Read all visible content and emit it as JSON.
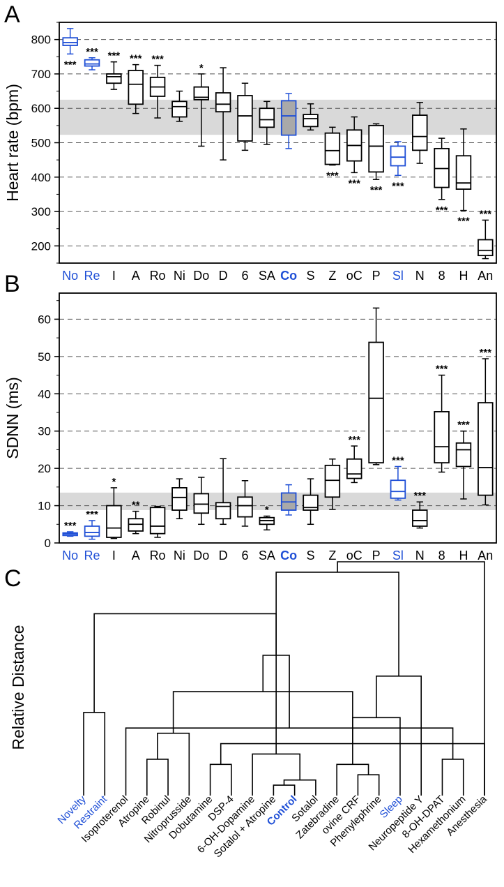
{
  "chart_data": [
    {
      "panel": "A",
      "type": "box",
      "ylabel": "Heart rate (bpm)",
      "ylim": [
        150,
        850
      ],
      "yticks": [
        200,
        300,
        400,
        500,
        600,
        700,
        800
      ],
      "grid": "dashed-horizontal",
      "band": [
        523,
        625
      ],
      "categories": [
        {
          "label": "No",
          "color": "#1f4fd6",
          "bold": false,
          "fill": "none",
          "color_box": "#1f4fd6",
          "whisker": [
            758,
            832
          ],
          "q1": 783,
          "median": 791,
          "q3": 805,
          "sig": "***",
          "sig_pos": "below"
        },
        {
          "label": "Re",
          "color": "#1f4fd6",
          "bold": false,
          "fill": "none",
          "color_box": "#1f4fd6",
          "whisker": [
            712,
            747
          ],
          "q1": 723,
          "median": 729,
          "q3": 741,
          "sig": "***",
          "sig_pos": "above"
        },
        {
          "label": "I",
          "color": "#000000",
          "bold": false,
          "fill": "none",
          "color_box": "#000000",
          "whisker": [
            655,
            735
          ],
          "q1": 673,
          "median": 692,
          "q3": 700,
          "sig": "***",
          "sig_pos": "above"
        },
        {
          "label": "A",
          "color": "#000000",
          "bold": false,
          "fill": "none",
          "color_box": "#000000",
          "whisker": [
            585,
            727
          ],
          "q1": 612,
          "median": 670,
          "q3": 710,
          "sig": "***",
          "sig_pos": "above"
        },
        {
          "label": "Ro",
          "color": "#000000",
          "bold": false,
          "fill": "none",
          "color_box": "#000000",
          "whisker": [
            572,
            725
          ],
          "q1": 635,
          "median": 662,
          "q3": 690,
          "sig": "***",
          "sig_pos": "above"
        },
        {
          "label": "Ni",
          "color": "#000000",
          "bold": false,
          "fill": "none",
          "color_box": "#000000",
          "whisker": [
            562,
            650
          ],
          "q1": 575,
          "median": 605,
          "q3": 620,
          "sig": "",
          "sig_pos": "above"
        },
        {
          "label": "Do",
          "color": "#000000",
          "bold": false,
          "fill": "none",
          "color_box": "#000000",
          "whisker": [
            490,
            700
          ],
          "q1": 625,
          "median": 632,
          "q3": 662,
          "sig": "*",
          "sig_pos": "above"
        },
        {
          "label": "D",
          "color": "#000000",
          "bold": false,
          "fill": "none",
          "color_box": "#000000",
          "whisker": [
            450,
            718
          ],
          "q1": 590,
          "median": 612,
          "q3": 645,
          "sig": "",
          "sig_pos": "above"
        },
        {
          "label": "6",
          "color": "#000000",
          "bold": false,
          "fill": "none",
          "color_box": "#000000",
          "whisker": [
            478,
            673
          ],
          "q1": 505,
          "median": 578,
          "q3": 637,
          "sig": "",
          "sig_pos": "above"
        },
        {
          "label": "SA",
          "color": "#000000",
          "bold": false,
          "fill": "none",
          "color_box": "#000000",
          "whisker": [
            495,
            620
          ],
          "q1": 545,
          "median": 567,
          "q3": 600,
          "sig": "",
          "sig_pos": "above"
        },
        {
          "label": "Co",
          "color": "#1f4fd6",
          "bold": true,
          "fill": "#a9a9a9",
          "color_box": "#1f4fd6",
          "whisker": [
            483,
            643
          ],
          "q1": 522,
          "median": 578,
          "q3": 622,
          "sig": "",
          "sig_pos": "above"
        },
        {
          "label": "S",
          "color": "#000000",
          "bold": false,
          "fill": "none",
          "color_box": "#000000",
          "whisker": [
            537,
            613
          ],
          "q1": 547,
          "median": 570,
          "q3": 582,
          "sig": "",
          "sig_pos": "above"
        },
        {
          "label": "Z",
          "color": "#000000",
          "bold": false,
          "fill": "none",
          "color_box": "#000000",
          "whisker": [
            435,
            545
          ],
          "q1": 437,
          "median": 477,
          "q3": 528,
          "sig": "***",
          "sig_pos": "below"
        },
        {
          "label": "oC",
          "color": "#000000",
          "bold": false,
          "fill": "none",
          "color_box": "#000000",
          "whisker": [
            413,
            575
          ],
          "q1": 447,
          "median": 492,
          "q3": 537,
          "sig": "***",
          "sig_pos": "below"
        },
        {
          "label": "P",
          "color": "#000000",
          "bold": false,
          "fill": "none",
          "color_box": "#000000",
          "whisker": [
            393,
            555
          ],
          "q1": 415,
          "median": 490,
          "q3": 550,
          "sig": "***",
          "sig_pos": "below"
        },
        {
          "label": "Sl",
          "color": "#1f4fd6",
          "bold": false,
          "fill": "none",
          "color_box": "#1f4fd6",
          "whisker": [
            405,
            503
          ],
          "q1": 433,
          "median": 458,
          "q3": 490,
          "sig": "***",
          "sig_pos": "below"
        },
        {
          "label": "N",
          "color": "#000000",
          "bold": false,
          "fill": "none",
          "color_box": "#000000",
          "whisker": [
            440,
            617
          ],
          "q1": 478,
          "median": 518,
          "q3": 580,
          "sig": "",
          "sig_pos": "above"
        },
        {
          "label": "8",
          "color": "#000000",
          "bold": false,
          "fill": "none",
          "color_box": "#000000",
          "whisker": [
            335,
            513
          ],
          "q1": 370,
          "median": 425,
          "q3": 483,
          "sig": "***",
          "sig_pos": "below"
        },
        {
          "label": "H",
          "color": "#000000",
          "bold": false,
          "fill": "none",
          "color_box": "#000000",
          "whisker": [
            303,
            540
          ],
          "q1": 365,
          "median": 383,
          "q3": 462,
          "sig": "***",
          "sig_pos": "below"
        },
        {
          "label": "An",
          "color": "#000000",
          "bold": false,
          "fill": "none",
          "color_box": "#000000",
          "whisker": [
            163,
            275
          ],
          "q1": 172,
          "median": 187,
          "q3": 218,
          "sig": "***",
          "sig_pos": "above"
        }
      ]
    },
    {
      "panel": "B",
      "type": "box",
      "ylabel": "SDNN (ms)",
      "ylim": [
        0,
        67
      ],
      "yticks": [
        0,
        10,
        20,
        30,
        40,
        50,
        60
      ],
      "grid": "dashed-horizontal",
      "band": [
        8.8,
        13.5
      ],
      "categories": [
        {
          "label": "No",
          "color": "#1f4fd6",
          "bold": false,
          "fill": "none",
          "color_box": "#1f4fd6",
          "whisker": [
            1.8,
            3.0
          ],
          "q1": 2.0,
          "median": 2.4,
          "q3": 2.7,
          "sig": "***"
        },
        {
          "label": "Re",
          "color": "#1f4fd6",
          "bold": false,
          "fill": "none",
          "color_box": "#1f4fd6",
          "whisker": [
            1.0,
            6.0
          ],
          "q1": 1.8,
          "median": 2.8,
          "q3": 4.5,
          "sig": "***"
        },
        {
          "label": "I",
          "color": "#000000",
          "bold": false,
          "fill": "none",
          "color_box": "#000000",
          "whisker": [
            1.2,
            14.8
          ],
          "q1": 1.5,
          "median": 4.0,
          "q3": 10.0,
          "sig": "*"
        },
        {
          "label": "A",
          "color": "#000000",
          "bold": false,
          "fill": "none",
          "color_box": "#000000",
          "whisker": [
            2.5,
            8.5
          ],
          "q1": 3.2,
          "median": 5.0,
          "q3": 6.5,
          "sig": "**"
        },
        {
          "label": "Ro",
          "color": "#000000",
          "bold": false,
          "fill": "none",
          "color_box": "#000000",
          "whisker": [
            1.5,
            9.8
          ],
          "q1": 2.5,
          "median": 4.5,
          "q3": 9.5,
          "sig": ""
        },
        {
          "label": "Ni",
          "color": "#000000",
          "bold": false,
          "fill": "none",
          "color_box": "#000000",
          "whisker": [
            6.5,
            17.2
          ],
          "q1": 8.8,
          "median": 12.2,
          "q3": 14.8,
          "sig": ""
        },
        {
          "label": "Do",
          "color": "#000000",
          "bold": false,
          "fill": "none",
          "color_box": "#000000",
          "whisker": [
            5.0,
            17.6
          ],
          "q1": 8.0,
          "median": 10.4,
          "q3": 13.2,
          "sig": ""
        },
        {
          "label": "D",
          "color": "#000000",
          "bold": false,
          "fill": "none",
          "color_box": "#000000",
          "whisker": [
            5.0,
            22.6
          ],
          "q1": 6.5,
          "median": 9.8,
          "q3": 10.8,
          "sig": ""
        },
        {
          "label": "6",
          "color": "#000000",
          "bold": false,
          "fill": "none",
          "color_box": "#000000",
          "whisker": [
            4.5,
            16.7
          ],
          "q1": 7.0,
          "median": 10.0,
          "q3": 12.3,
          "sig": ""
        },
        {
          "label": "SA",
          "color": "#000000",
          "bold": false,
          "fill": "none",
          "color_box": "#000000",
          "whisker": [
            3.5,
            7.2
          ],
          "q1": 5.0,
          "median": 6.0,
          "q3": 6.8,
          "sig": "*"
        },
        {
          "label": "Co",
          "color": "#1f4fd6",
          "bold": true,
          "fill": "#a9a9a9",
          "color_box": "#1f4fd6",
          "whisker": [
            7.5,
            15.6
          ],
          "q1": 8.8,
          "median": 11.0,
          "q3": 13.4,
          "sig": ""
        },
        {
          "label": "S",
          "color": "#000000",
          "bold": false,
          "fill": "none",
          "color_box": "#000000",
          "whisker": [
            5.0,
            17.2
          ],
          "q1": 8.8,
          "median": 9.5,
          "q3": 12.8,
          "sig": ""
        },
        {
          "label": "Z",
          "color": "#000000",
          "bold": false,
          "fill": "none",
          "color_box": "#000000",
          "whisker": [
            9.0,
            22.5
          ],
          "q1": 12.3,
          "median": 16.8,
          "q3": 20.8,
          "sig": ""
        },
        {
          "label": "oC",
          "color": "#000000",
          "bold": false,
          "fill": "none",
          "color_box": "#000000",
          "whisker": [
            16.2,
            26.0
          ],
          "q1": 17.3,
          "median": 18.5,
          "q3": 22.5,
          "sig": "***"
        },
        {
          "label": "P",
          "color": "#000000",
          "bold": false,
          "fill": "none",
          "color_box": "#000000",
          "whisker": [
            21.0,
            63.0
          ],
          "q1": 21.5,
          "median": 38.8,
          "q3": 53.8,
          "sig": ""
        },
        {
          "label": "Sl",
          "color": "#1f4fd6",
          "bold": false,
          "fill": "none",
          "color_box": "#1f4fd6",
          "whisker": [
            11.5,
            20.5
          ],
          "q1": 12.0,
          "median": 13.8,
          "q3": 16.8,
          "sig": "***"
        },
        {
          "label": "N",
          "color": "#000000",
          "bold": false,
          "fill": "none",
          "color_box": "#000000",
          "whisker": [
            4.0,
            11.0
          ],
          "q1": 4.5,
          "median": 6.0,
          "q3": 8.8,
          "sig": "***"
        },
        {
          "label": "8",
          "color": "#000000",
          "bold": false,
          "fill": "none",
          "color_box": "#000000",
          "whisker": [
            19.0,
            45.0
          ],
          "q1": 21.5,
          "median": 25.8,
          "q3": 35.2,
          "sig": "***"
        },
        {
          "label": "H",
          "color": "#000000",
          "bold": false,
          "fill": "none",
          "color_box": "#000000",
          "whisker": [
            11.8,
            30.0
          ],
          "q1": 20.5,
          "median": 25.0,
          "q3": 26.8,
          "sig": "***"
        },
        {
          "label": "An",
          "color": "#000000",
          "bold": false,
          "fill": "none",
          "color_box": "#000000",
          "whisker": [
            10.2,
            49.4
          ],
          "q1": 12.8,
          "median": 20.2,
          "q3": 37.6,
          "sig": "***"
        }
      ]
    },
    {
      "panel": "C",
      "type": "dendrogram",
      "ylabel": "Relative Distance",
      "leaves": [
        {
          "label": "Novelty",
          "color": "#1f4fd6",
          "bold": false
        },
        {
          "label": "Restraint",
          "color": "#1f4fd6",
          "bold": false
        },
        {
          "label": "Isoproterenol",
          "color": "#000000",
          "bold": false
        },
        {
          "label": "Atropine",
          "color": "#000000",
          "bold": false
        },
        {
          "label": "Robinul",
          "color": "#000000",
          "bold": false
        },
        {
          "label": "Nitroprusside",
          "color": "#000000",
          "bold": false
        },
        {
          "label": "Dobutamine",
          "color": "#000000",
          "bold": false
        },
        {
          "label": "DSP-4",
          "color": "#000000",
          "bold": false
        },
        {
          "label": "6-OH-Dopamine",
          "color": "#000000",
          "bold": false
        },
        {
          "label": "Sotalol + Atropine",
          "color": "#000000",
          "bold": false
        },
        {
          "label": "Control",
          "color": "#1f4fd6",
          "bold": true
        },
        {
          "label": "Sotalol",
          "color": "#000000",
          "bold": false
        },
        {
          "label": "Zatebradine",
          "color": "#000000",
          "bold": false
        },
        {
          "label": "ovine CRF",
          "color": "#000000",
          "bold": false
        },
        {
          "label": "Phenylephrine",
          "color": "#000000",
          "bold": false
        },
        {
          "label": "Sleep",
          "color": "#1f4fd6",
          "bold": false
        },
        {
          "label": "Neuropeptide Y",
          "color": "#000000",
          "bold": false
        },
        {
          "label": "8-OH-DPAT",
          "color": "#000000",
          "bold": false
        },
        {
          "label": "Hexamethonium",
          "color": "#000000",
          "bold": false
        },
        {
          "label": "Anesthesia",
          "color": "#000000",
          "bold": false
        }
      ],
      "merges": [
        [
          9,
          10,
          0.02
        ],
        [
          20,
          11,
          0.03
        ],
        [
          13,
          14,
          0.04
        ],
        [
          12,
          22,
          0.06
        ],
        [
          6,
          7,
          0.06
        ],
        [
          3,
          4,
          0.07
        ],
        [
          17,
          18,
          0.07
        ],
        [
          8,
          21,
          0.08
        ],
        [
          24,
          19,
          0.1
        ],
        [
          5,
          25,
          0.12
        ],
        [
          2,
          26,
          0.13
        ],
        [
          23,
          15,
          0.15
        ],
        [
          0,
          1,
          0.16
        ],
        [
          29,
          28,
          0.2
        ],
        [
          31,
          16,
          0.23
        ],
        [
          30,
          33,
          0.27
        ],
        [
          32,
          35,
          0.35
        ],
        [
          34,
          27,
          0.43
        ],
        [
          37,
          19,
          0.45
        ]
      ],
      "merges_note_unused": ""
    }
  ],
  "panel_labels": {
    "a": "A",
    "b": "B",
    "c": "C"
  }
}
